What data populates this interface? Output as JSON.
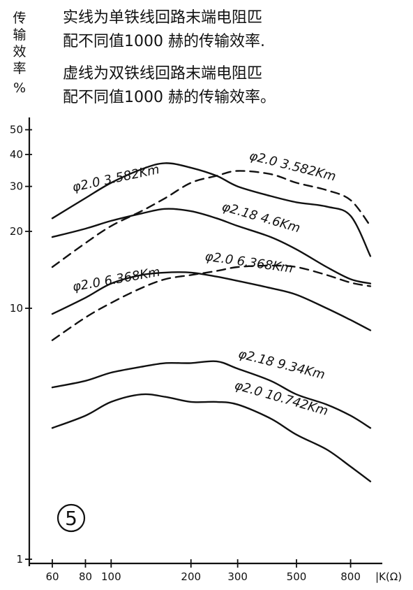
{
  "chart_data": {
    "type": "line",
    "notes": [
      "实线为单铁线回路末端电阻匹",
      "配不同值1000 赫的传输效率.",
      "虚线为双铁线回路末端电阻匹",
      "配不同值1000 赫的传输效率。"
    ],
    "ylabel": [
      "传",
      "输",
      "效",
      "率",
      "%"
    ],
    "xlabel": "|K(Ω)",
    "x_scale": "log",
    "y_scale": "log",
    "x_ticks": [
      60,
      80,
      100,
      200,
      300,
      500,
      800
    ],
    "x_tick_labels": [
      "60",
      "80",
      "100",
      "200",
      "300",
      "500",
      "800"
    ],
    "y_ticks": [
      1,
      10,
      20,
      30,
      40,
      50
    ],
    "y_tick_labels": [
      "1",
      "10",
      "20",
      "30",
      "40",
      "50"
    ],
    "xlim": [
      55,
      1000
    ],
    "ylim": [
      1,
      60
    ],
    "figure_label": "5",
    "series": [
      {
        "name": "φ2.0 3.582Km",
        "style": "solid",
        "x": [
          60,
          80,
          100,
          130,
          160,
          200,
          250,
          300,
          400,
          500,
          650,
          800,
          950
        ],
        "y": [
          22.5,
          27,
          31,
          35,
          37,
          35.5,
          33,
          30,
          27.5,
          26,
          25,
          23,
          16
        ]
      },
      {
        "name": "φ2.18 4.6Km",
        "style": "solid",
        "x": [
          60,
          80,
          100,
          130,
          160,
          200,
          250,
          300,
          400,
          500,
          650,
          800,
          950
        ],
        "y": [
          19,
          20.5,
          22,
          23.5,
          24.5,
          24,
          22.5,
          21,
          19,
          17,
          14.5,
          13,
          12.5
        ]
      },
      {
        "name": "φ2.0 6.368Km",
        "style": "solid",
        "x": [
          60,
          80,
          100,
          130,
          160,
          200,
          250,
          300,
          400,
          500,
          650,
          800,
          950
        ],
        "y": [
          9.5,
          11,
          12.5,
          13.5,
          13.8,
          13.8,
          13.3,
          12.8,
          12,
          11.3,
          10,
          9,
          8.2
        ]
      },
      {
        "name": "φ2.18 9.34Km",
        "style": "solid",
        "x": [
          60,
          80,
          100,
          130,
          160,
          200,
          250,
          300,
          400,
          500,
          650,
          800,
          950
        ],
        "y": [
          4.9,
          5.2,
          5.6,
          5.9,
          6.1,
          6.1,
          6.2,
          5.8,
          5.2,
          4.6,
          4.2,
          3.8,
          3.4
        ]
      },
      {
        "name": "φ2.0 10.742Km",
        "style": "solid",
        "x": [
          60,
          80,
          100,
          130,
          160,
          200,
          250,
          300,
          400,
          500,
          650,
          800,
          950
        ],
        "y": [
          3.4,
          3.8,
          4.3,
          4.6,
          4.5,
          4.3,
          4.3,
          4.2,
          3.7,
          3.2,
          2.8,
          2.4,
          2.1
        ]
      },
      {
        "name": "φ2.0 3.582Km",
        "style": "dashed",
        "x": [
          60,
          80,
          100,
          130,
          160,
          200,
          250,
          300,
          400,
          500,
          650,
          800,
          950
        ],
        "y": [
          14.5,
          18,
          21,
          24,
          27,
          31,
          33,
          34.5,
          33.5,
          31,
          29,
          26.5,
          21
        ]
      },
      {
        "name": "φ2.0 6.368Km",
        "style": "dashed",
        "x": [
          60,
          80,
          100,
          130,
          160,
          200,
          250,
          300,
          400,
          500,
          650,
          800,
          950
        ],
        "y": [
          7.5,
          9.2,
          10.5,
          12,
          13,
          13.5,
          14,
          14.5,
          14.7,
          14.5,
          13.5,
          12.6,
          12.2
        ]
      }
    ]
  }
}
